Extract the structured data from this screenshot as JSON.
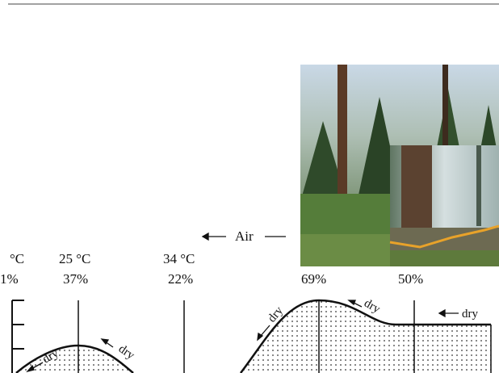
{
  "labels": {
    "temps": [
      "°C",
      "25 °C",
      "34 °C"
    ],
    "humidity": [
      "1%",
      "37%",
      "22%",
      "69%",
      "50%"
    ],
    "air": "Air",
    "dry": [
      "dry",
      "dry",
      "dry",
      "dry",
      "dry"
    ]
  }
}
